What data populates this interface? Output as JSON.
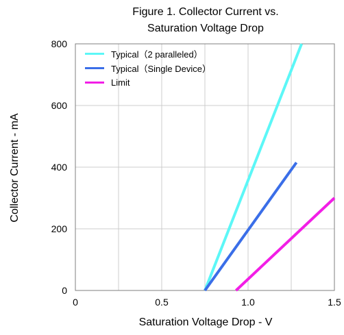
{
  "chart_data": {
    "type": "line",
    "title": [
      "Figure 1. Collector Current vs.",
      "Saturation Voltage Drop"
    ],
    "xlabel": "Saturation Voltage Drop - V",
    "ylabel": "Collector Current - mA",
    "xlim": [
      0,
      1.5
    ],
    "ylim": [
      0,
      800
    ],
    "x_ticks": [
      "0",
      "0.5",
      "1.0",
      "1.5"
    ],
    "x_tick_values": [
      0,
      0.5,
      1.0,
      1.5
    ],
    "y_ticks": [
      "0",
      "200",
      "400",
      "600",
      "800"
    ],
    "y_tick_values": [
      0,
      200,
      400,
      600,
      800
    ],
    "grid": true,
    "legend_position": "top-left",
    "series": [
      {
        "name": "Typical（2 paralleled）",
        "color": "#5cf7f7",
        "x": [
          0.75,
          1.31
        ],
        "y": [
          0,
          800
        ]
      },
      {
        "name": "Typical（Single Device）",
        "color": "#3a6ee8",
        "x": [
          0.75,
          1.28
        ],
        "y": [
          0,
          415
        ]
      },
      {
        "name": "Limit",
        "color": "#f21ee6",
        "x": [
          0.93,
          1.5
        ],
        "y": [
          0,
          300
        ]
      }
    ]
  }
}
